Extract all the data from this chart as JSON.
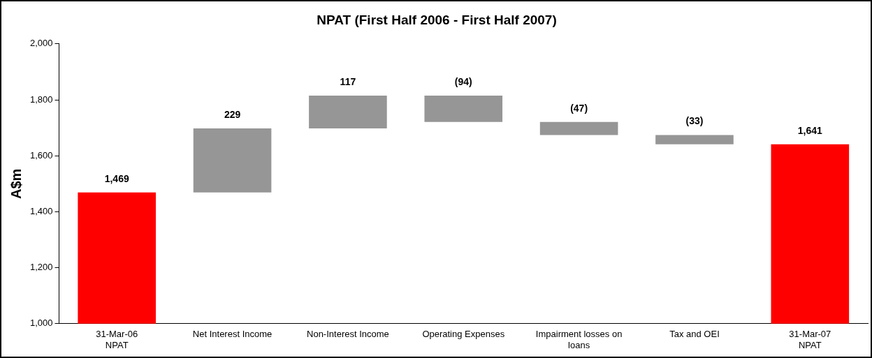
{
  "chart_data": {
    "type": "bar",
    "title": "NPAT (First Half 2006 - First Half 2007)",
    "ylabel": "A$m",
    "categories": [
      "31-Mar-06 NPAT",
      "Net Interest Income",
      "Non-Interest Income",
      "Operating Expenses",
      "Impairment losses on loans",
      "Tax and OEI",
      "31-Mar-07 NPAT"
    ],
    "values": [
      1469,
      229,
      117,
      -94,
      -47,
      -33,
      1641
    ],
    "base": [
      null,
      1469,
      1698,
      1815,
      1721,
      1674,
      null
    ],
    "colors": [
      "#ff0000",
      "#969696",
      "#969696",
      "#969696",
      "#969696",
      "#969696",
      "#ff0000"
    ],
    "value_labels": [
      "1,469",
      "229",
      "117",
      "(94)",
      "(47)",
      "(33)",
      "1,641"
    ],
    "ylim": [
      1000,
      2000
    ],
    "yticks": [
      {
        "value": 1000,
        "label": "1,000"
      },
      {
        "value": 1200,
        "label": "1,200"
      },
      {
        "value": 1400,
        "label": "1,400"
      },
      {
        "value": 1600,
        "label": "1,600"
      },
      {
        "value": 1800,
        "label": "1,800"
      },
      {
        "value": 2000,
        "label": "2,000"
      }
    ],
    "grid": false,
    "legend": false
  }
}
